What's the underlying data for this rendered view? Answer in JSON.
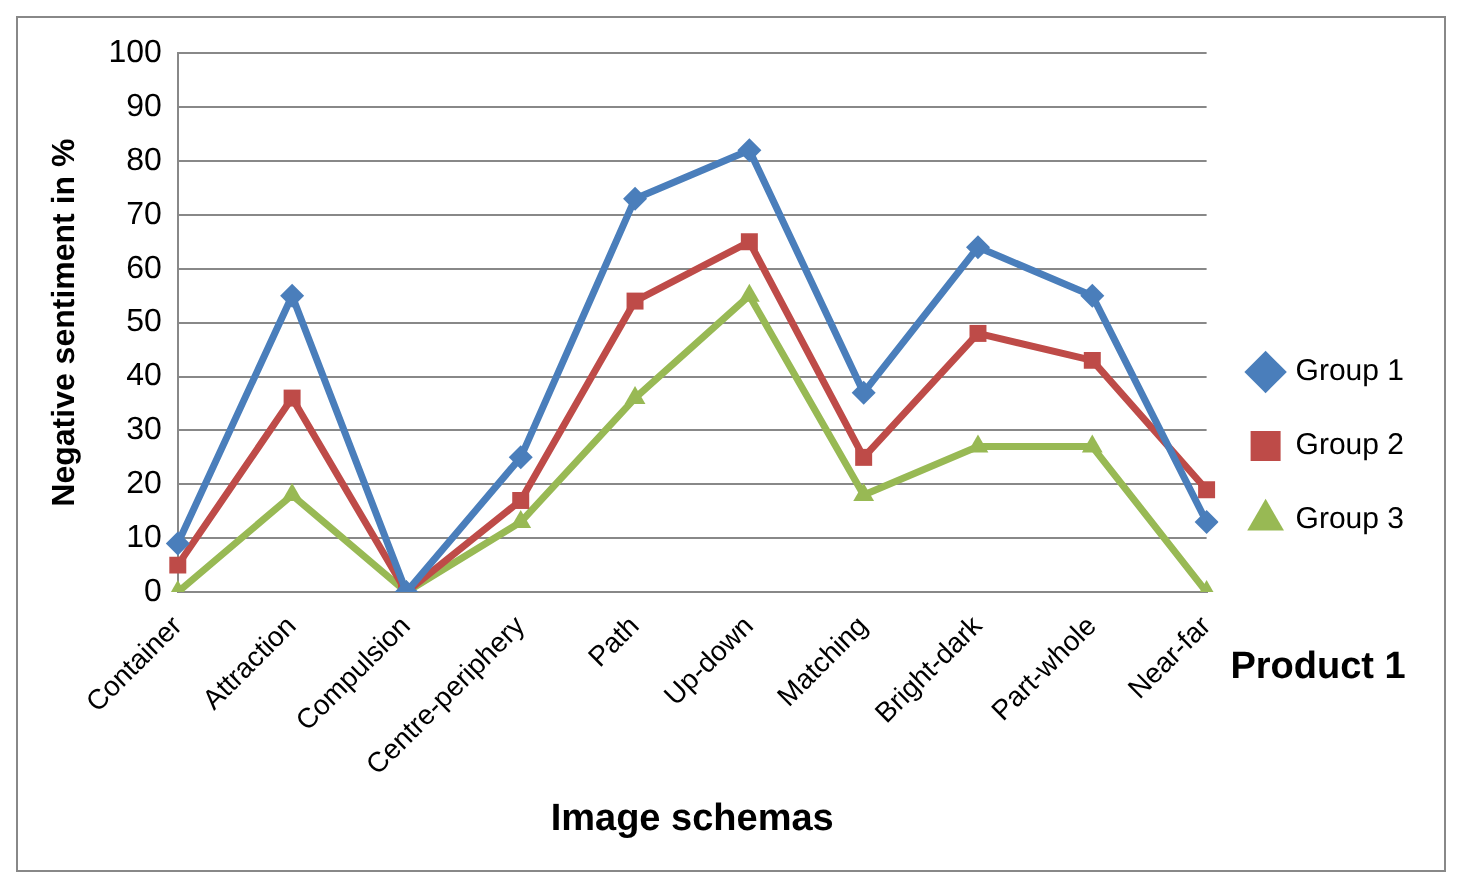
{
  "chart_data": {
    "type": "line",
    "xlabel": "Image schemas",
    "ylabel": "Negative sentiment in %",
    "categories": [
      "Container",
      "Attraction",
      "Compulsion",
      "Centre-periphery",
      "Path",
      "Up-down",
      "Matching",
      "Bright-dark",
      "Part-whole",
      "Near-far"
    ],
    "series": [
      {
        "name": "Group 1",
        "color": "#4a7ebb",
        "marker": "diamond",
        "values": [
          9,
          55,
          0,
          25,
          73,
          82,
          37,
          64,
          55,
          13
        ]
      },
      {
        "name": "Group 2",
        "color": "#be4b48",
        "marker": "square",
        "values": [
          5,
          36,
          0,
          17,
          54,
          65,
          25,
          48,
          43,
          19
        ]
      },
      {
        "name": "Group 3",
        "color": "#98b954",
        "marker": "triangle",
        "values": [
          0,
          18,
          0,
          13,
          36,
          55,
          18,
          27,
          27,
          0
        ]
      }
    ],
    "ylim": [
      0,
      100
    ],
    "yticks": [
      0,
      10,
      20,
      30,
      40,
      50,
      60,
      70,
      80,
      90,
      100
    ],
    "grid": "y",
    "legend": "right",
    "line_style": "solid",
    "annotations": [
      "Product 1"
    ]
  }
}
